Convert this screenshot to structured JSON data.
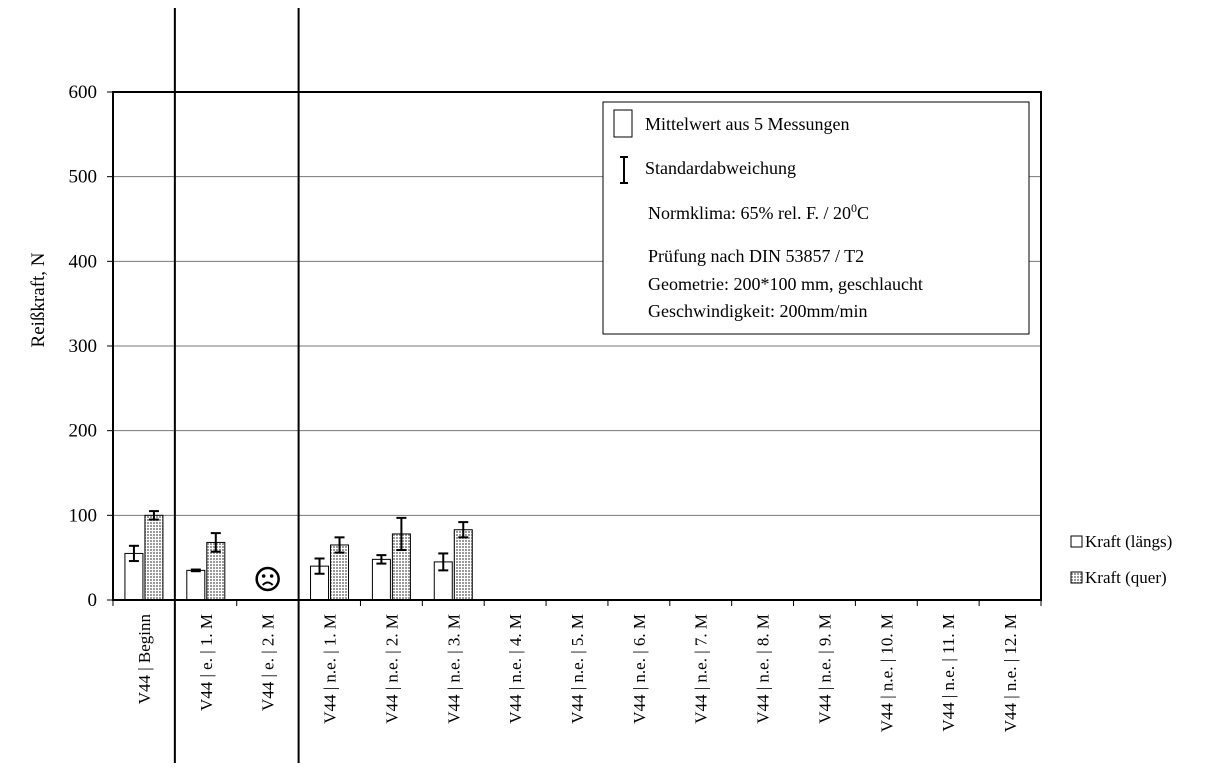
{
  "chart_data": {
    "type": "bar",
    "ylabel": "Reißkraft, N",
    "ylim": [
      0,
      600
    ],
    "yticks": [
      0,
      100,
      200,
      300,
      400,
      500,
      600
    ],
    "grid": true,
    "categories": [
      "V44 | Beginn",
      "V44 | e. | 1. M",
      "V44 | e. | 2. M",
      "V44 | n.e. | 1. M",
      "V44 | n.e. | 2. M",
      "V44 | n.e. | 3. M",
      "V44 | n.e. | 4. M",
      "V44 | n.e. | 5. M",
      "V44 | n.e. | 6. M",
      "V44 | n.e. | 7. M",
      "V44 | n.e. | 8. M",
      "V44 | n.e. | 9. M",
      "V44 | n.e. | 10. M",
      "V44 | n.e. | 11. M",
      "V44 | n.e. | 12. M"
    ],
    "series": [
      {
        "name": "Kraft (längs)",
        "color": "#ffffff",
        "values": [
          55,
          35,
          null,
          40,
          48,
          45,
          null,
          null,
          null,
          null,
          null,
          null,
          null,
          null,
          null
        ],
        "errors": [
          9,
          1,
          null,
          9,
          5,
          10,
          null,
          null,
          null,
          null,
          null,
          null,
          null,
          null,
          null
        ]
      },
      {
        "name": "Kraft (quer)",
        "color": "#c8c8c8",
        "pattern": "dotted",
        "values": [
          100,
          68,
          null,
          65,
          78,
          83,
          null,
          null,
          null,
          null,
          null,
          null,
          null,
          null,
          null
        ],
        "errors": [
          5,
          11,
          null,
          9,
          19,
          9,
          null,
          null,
          null,
          null,
          null,
          null,
          null,
          null,
          null
        ]
      }
    ],
    "separators_after": [
      0,
      2
    ],
    "missing_marker": {
      "category_index": 2,
      "symbol": "☹"
    },
    "legend_position": "right",
    "annotation_box": {
      "bar_label": "Mittelwert aus 5 Messungen",
      "error_label": "Standardabweichung",
      "climate": "Normklima: 65% rel. F. / 20",
      "climate_superscript": "0",
      "climate_unit": "C",
      "test_lines": [
        "Prüfung nach DIN 53857 / T2",
        "Geometrie: 200*100 mm, geschlaucht",
        "Geschwindigkeit: 200mm/min"
      ]
    }
  }
}
